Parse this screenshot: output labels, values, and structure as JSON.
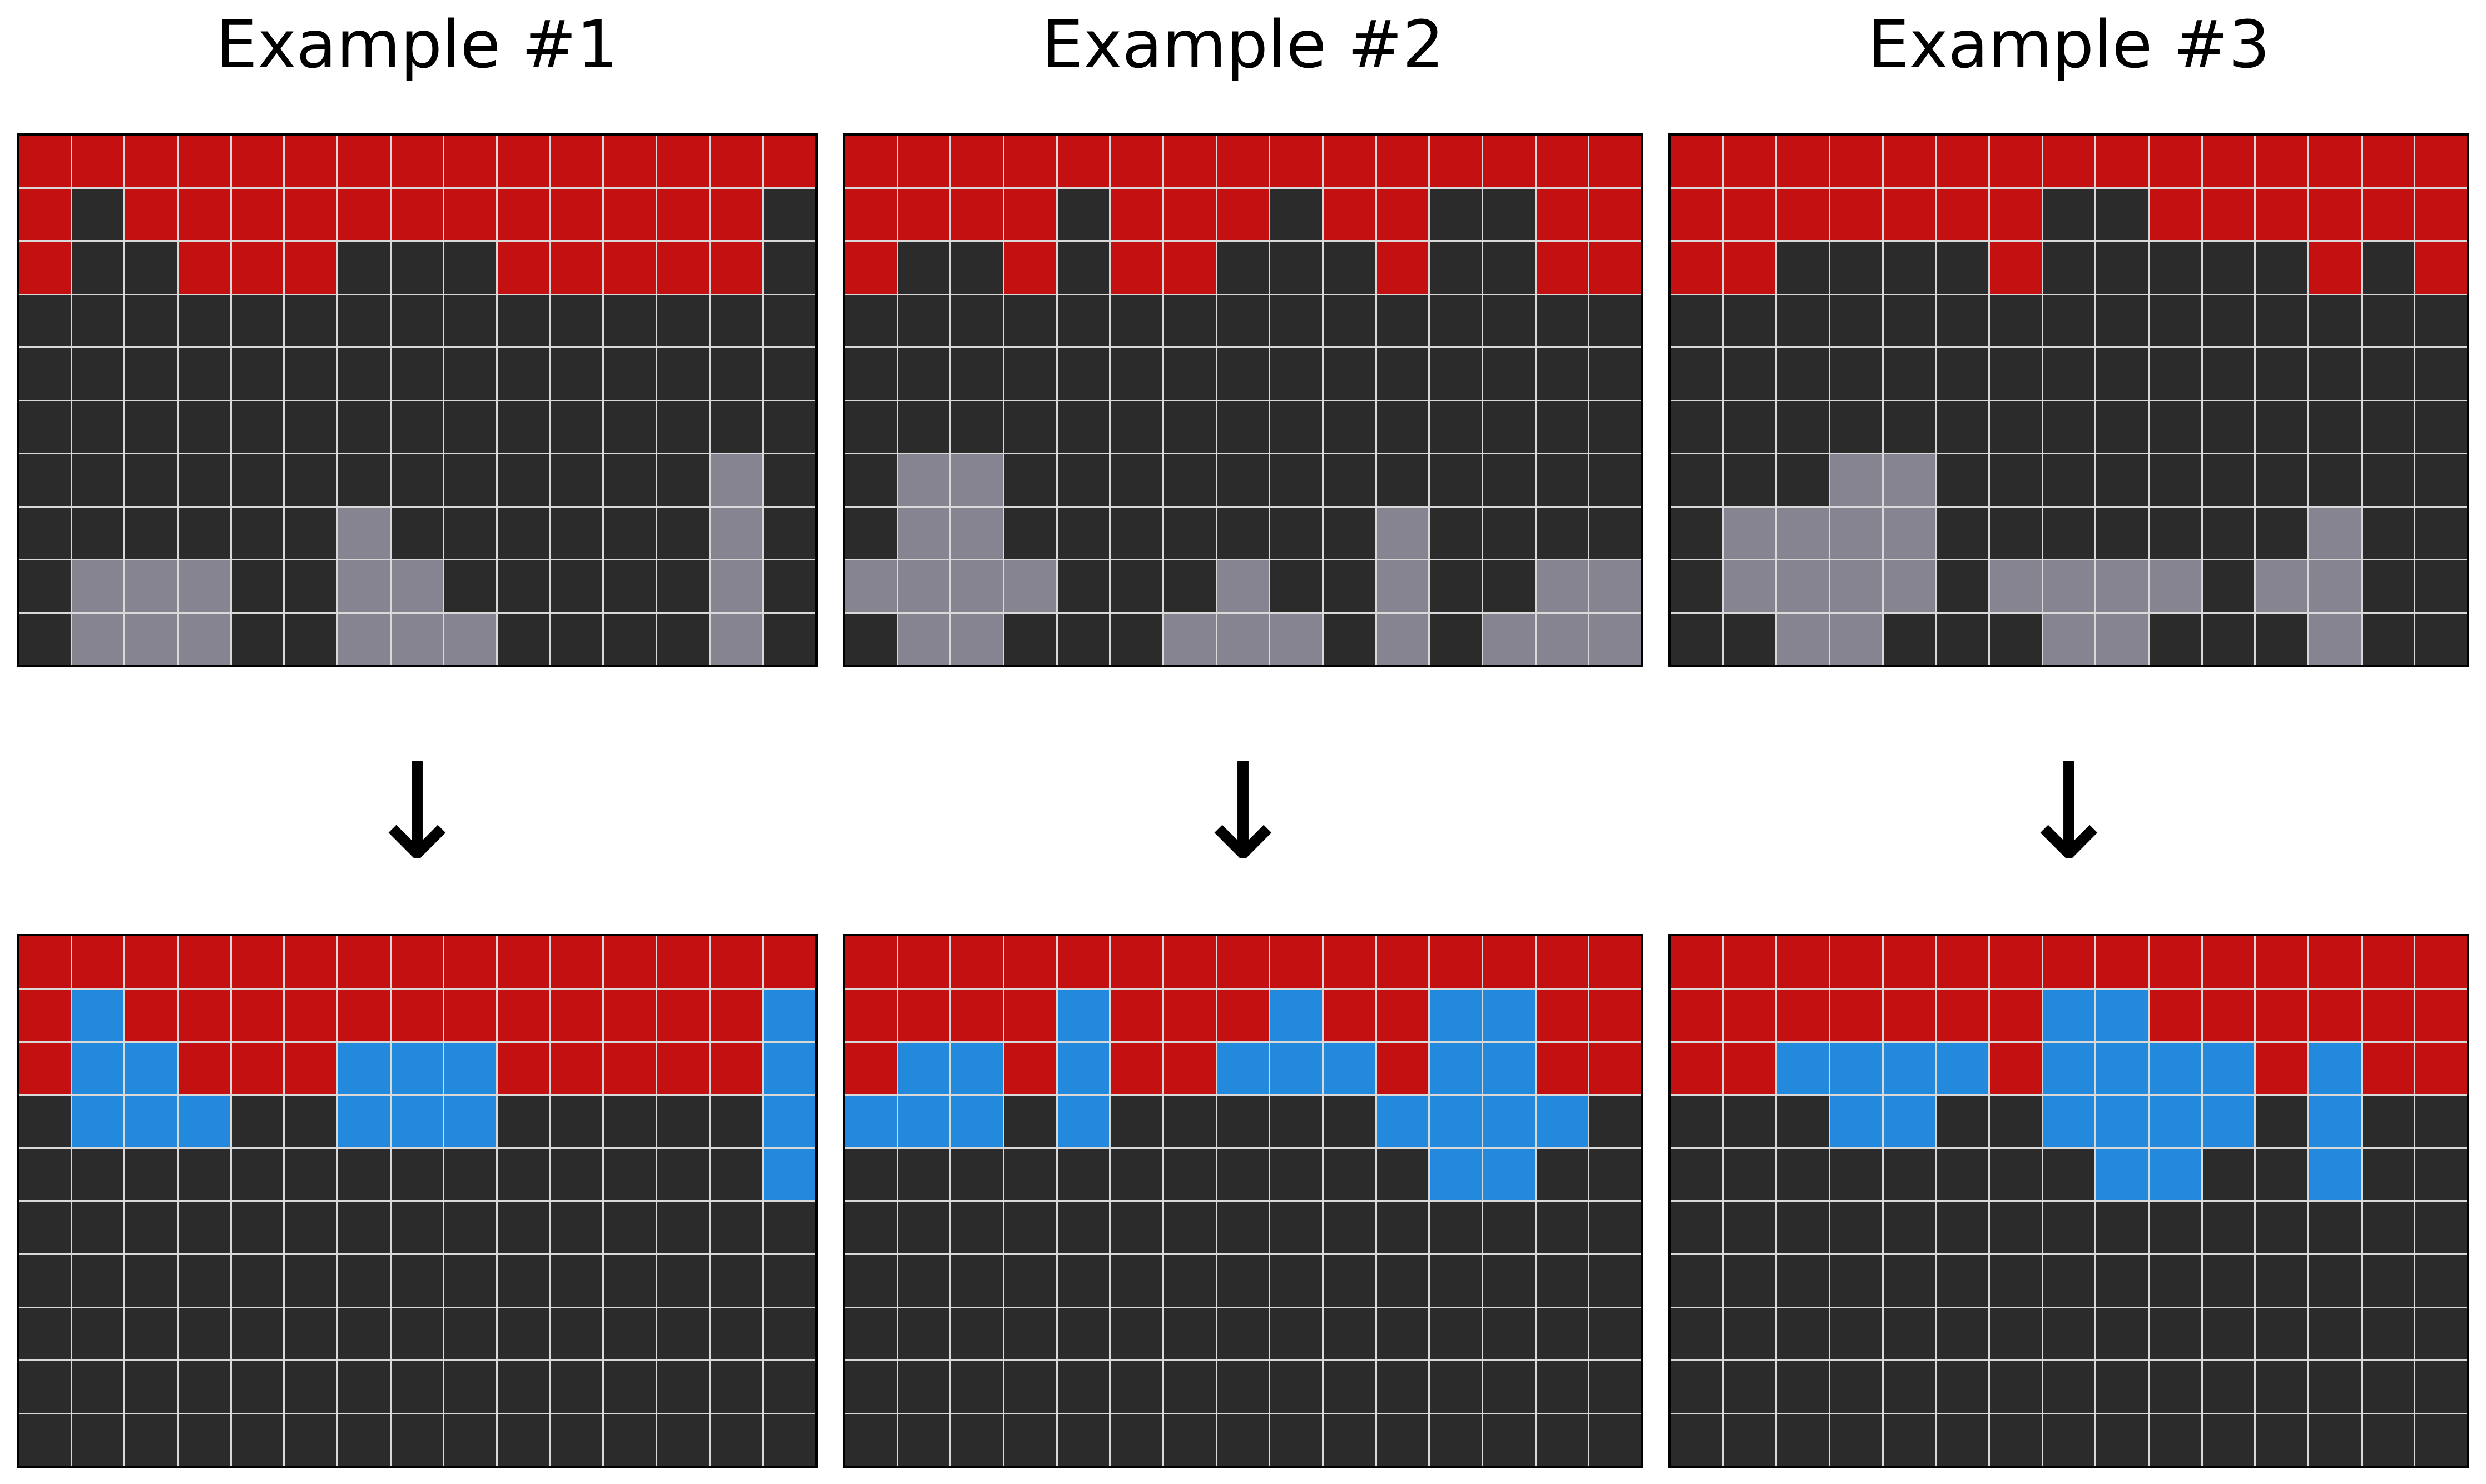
{
  "examples": [
    {
      "title": "Example #1",
      "arrow": "↓",
      "input": [
        "111111111111111",
        "101111111111110",
        "100111000111110",
        "000000000000000",
        "000000000000000",
        "000000000000000",
        "000000000000020",
        "000000200000020",
        "022200220000020",
        "022200222000020"
      ],
      "output": [
        "111111111111111",
        "131111111111113",
        "133111333111113",
        "033300333000003",
        "000000000000003",
        "000000000000000",
        "000000000000000",
        "000000000000000",
        "000000000000000",
        "000000000000000"
      ]
    },
    {
      "title": "Example #2",
      "arrow": "↓",
      "input": [
        "111111111111111",
        "111101110110011",
        "100101100010011",
        "000000000000000",
        "000000000000000",
        "000000000000000",
        "022000000000000",
        "022000000020000",
        "222200020020022",
        "022000222020222"
      ],
      "output": [
        "111111111111111",
        "111131113113311",
        "133131133313311",
        "333030000033330",
        "000000000003300",
        "000000000000000",
        "000000000000000",
        "000000000000000",
        "000000000000000",
        "000000000000000"
      ],
      "cell_row": 11
    },
    {
      "title": "Example #3",
      "arrow": "↓",
      "input": [
        "111111111111111",
        "111111100111111",
        "110000100000101",
        "000000000000000",
        "000000000000000",
        "000000000000000",
        "000220000000000",
        "022220000000200",
        "022220222202200",
        "002200022000200"
      ],
      "output": [
        "111111111111111",
        "111111133111111",
        "113333133331311",
        "000330033330300",
        "000000003300300",
        "000000000000000",
        "000000000000000",
        "000000000000000",
        "000000000000000",
        "000000000000000"
      ]
    }
  ],
  "colors": {
    "0": "#2b2b2b",
    "1": "#c41010",
    "2": "#868491",
    "3": "#2389dc",
    "gridline": "#d9d9d9",
    "border": "#000000"
  }
}
